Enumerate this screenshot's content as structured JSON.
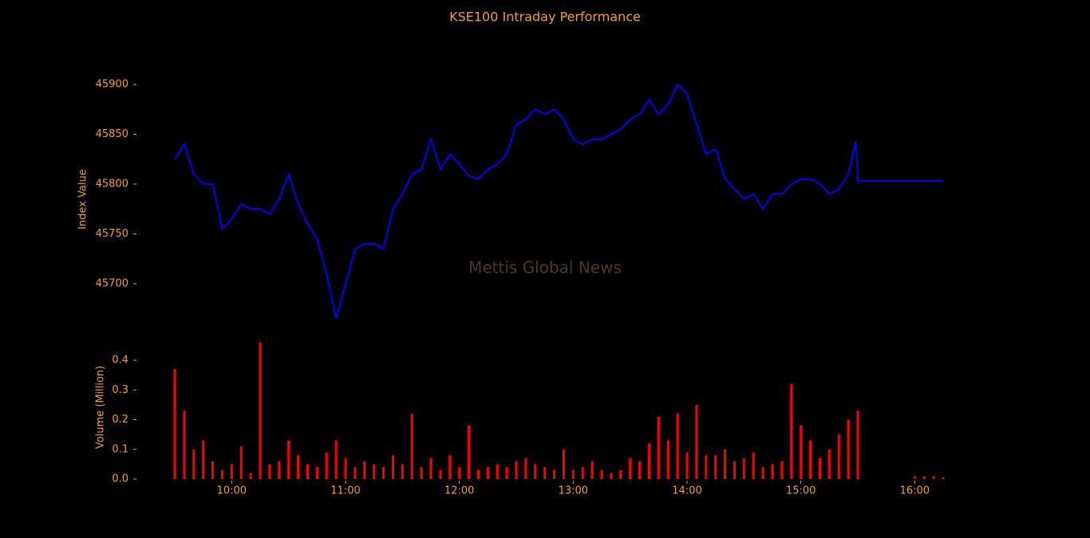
{
  "chart_data": [
    {
      "type": "line",
      "title": "KSE100 Intraday Performance",
      "ylabel": "Index Value",
      "watermark": "Mettis Global News",
      "x": [
        "09:30",
        "09:35",
        "09:40",
        "09:45",
        "09:50",
        "09:55",
        "10:00",
        "10:05",
        "10:10",
        "10:15",
        "10:20",
        "10:25",
        "10:30",
        "10:35",
        "10:40",
        "10:45",
        "10:50",
        "10:55",
        "11:00",
        "11:05",
        "11:10",
        "11:15",
        "11:20",
        "11:25",
        "11:30",
        "11:35",
        "11:40",
        "11:45",
        "11:50",
        "11:55",
        "12:00",
        "12:05",
        "12:10",
        "12:15",
        "12:20",
        "12:25",
        "12:30",
        "12:35",
        "12:40",
        "12:45",
        "12:50",
        "12:55",
        "13:00",
        "13:05",
        "13:10",
        "13:15",
        "13:20",
        "13:25",
        "13:30",
        "13:35",
        "13:40",
        "13:45",
        "13:50",
        "13:55",
        "14:00",
        "14:05",
        "14:10",
        "14:15",
        "14:20",
        "14:25",
        "14:30",
        "14:35",
        "14:40",
        "14:45",
        "14:50",
        "14:55",
        "15:00",
        "15:05",
        "15:10",
        "15:15",
        "15:20",
        "15:25",
        "15:29",
        "15:30",
        "16:15"
      ],
      "series": [
        {
          "name": "KSE100",
          "color": "#0000ff",
          "values": [
            45825,
            45840,
            45810,
            45800,
            45800,
            45755,
            45765,
            45780,
            45775,
            45775,
            45770,
            45785,
            45810,
            45780,
            45760,
            45745,
            45710,
            45665,
            45700,
            45735,
            45740,
            45740,
            45735,
            45775,
            45790,
            45810,
            45815,
            45845,
            45815,
            45830,
            45820,
            45808,
            45805,
            45815,
            45820,
            45830,
            45860,
            45865,
            45875,
            45870,
            45875,
            45865,
            45845,
            45840,
            45845,
            45845,
            45850,
            45855,
            45865,
            45870,
            45885,
            45870,
            45880,
            45900,
            45890,
            45860,
            45830,
            45835,
            45805,
            45795,
            45785,
            45790,
            45775,
            45790,
            45790,
            45800,
            45805,
            45805,
            45800,
            45790,
            45795,
            45810,
            45843,
            45803,
            45803
          ]
        }
      ],
      "xlim": [
        "09:30",
        "16:15"
      ],
      "ylim": [
        45660,
        45910
      ],
      "yticks": [
        45700,
        45750,
        45800,
        45850,
        45900
      ]
    },
    {
      "type": "bar",
      "ylabel": "Volume (Million)",
      "x": [
        "09:30",
        "09:35",
        "09:40",
        "09:45",
        "09:50",
        "09:55",
        "10:00",
        "10:05",
        "10:10",
        "10:15",
        "10:20",
        "10:25",
        "10:30",
        "10:35",
        "10:40",
        "10:45",
        "10:50",
        "10:55",
        "11:00",
        "11:05",
        "11:10",
        "11:15",
        "11:20",
        "11:25",
        "11:30",
        "11:35",
        "11:40",
        "11:45",
        "11:50",
        "11:55",
        "12:00",
        "12:05",
        "12:10",
        "12:15",
        "12:20",
        "12:25",
        "12:30",
        "12:35",
        "12:40",
        "12:45",
        "12:50",
        "12:55",
        "13:00",
        "13:05",
        "13:10",
        "13:15",
        "13:20",
        "13:25",
        "13:30",
        "13:35",
        "13:40",
        "13:45",
        "13:50",
        "13:55",
        "14:00",
        "14:05",
        "14:10",
        "14:15",
        "14:20",
        "14:25",
        "14:30",
        "14:35",
        "14:40",
        "14:45",
        "14:50",
        "14:55",
        "15:00",
        "15:05",
        "15:10",
        "15:15",
        "15:20",
        "15:25",
        "15:30",
        "16:00",
        "16:05",
        "16:10",
        "16:15"
      ],
      "series": [
        {
          "name": "Volume",
          "color": "#ff0000",
          "values": [
            0.37,
            0.23,
            0.1,
            0.13,
            0.06,
            0.03,
            0.05,
            0.11,
            0.02,
            0.46,
            0.05,
            0.06,
            0.13,
            0.08,
            0.05,
            0.04,
            0.09,
            0.13,
            0.07,
            0.04,
            0.06,
            0.05,
            0.04,
            0.08,
            0.05,
            0.22,
            0.04,
            0.07,
            0.03,
            0.08,
            0.04,
            0.18,
            0.03,
            0.04,
            0.05,
            0.04,
            0.06,
            0.07,
            0.05,
            0.04,
            0.03,
            0.1,
            0.03,
            0.04,
            0.06,
            0.03,
            0.02,
            0.03,
            0.07,
            0.06,
            0.12,
            0.21,
            0.13,
            0.22,
            0.09,
            0.25,
            0.08,
            0.08,
            0.1,
            0.06,
            0.07,
            0.09,
            0.04,
            0.05,
            0.06,
            0.32,
            0.18,
            0.13,
            0.07,
            0.1,
            0.15,
            0.2,
            0.23,
            0.01,
            0.01,
            0.01,
            0.005
          ]
        }
      ],
      "xlim": [
        "09:30",
        "16:15"
      ],
      "ylim": [
        0,
        0.47
      ],
      "yticks": [
        {
          "value": 0,
          "label": "0.0"
        },
        {
          "value": 0.1,
          "label": "0.1"
        },
        {
          "value": 0.2,
          "label": "0.2"
        },
        {
          "value": 0.3,
          "label": "0.3"
        },
        {
          "value": 0.4,
          "label": "0.4"
        }
      ],
      "xticks": [
        "10:00",
        "11:00",
        "12:00",
        "13:00",
        "14:00",
        "15:00",
        "16:00"
      ]
    }
  ]
}
